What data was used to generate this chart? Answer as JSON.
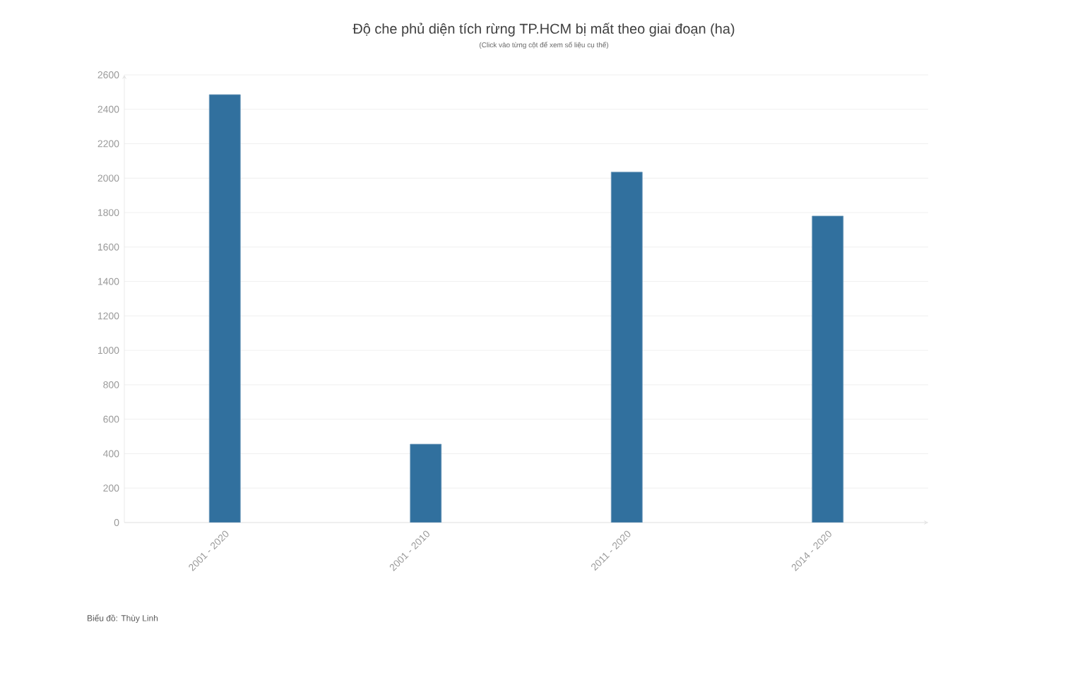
{
  "chart_data": {
    "type": "bar",
    "title": "Độ che phủ diện tích rừng TP.HCM bị mất theo giai đoạn (ha)",
    "subtitle": "(Click vào từng cột để xem số liệu cụ thể)",
    "annotations": [
      "Biểu đồ: Thùy Linh"
    ],
    "categories": [
      "2001 - 2020",
      "2001 - 2010",
      "2011 - 2020",
      "2014 - 2020"
    ],
    "values": [
      2485,
      455,
      2035,
      1780
    ],
    "color": "#31709e",
    "ylim": [
      0,
      2600
    ],
    "yticks": [
      0,
      200,
      400,
      600,
      800,
      1000,
      1200,
      1400,
      1600,
      1800,
      2000,
      2200,
      2400,
      2600
    ],
    "grid": "y"
  }
}
